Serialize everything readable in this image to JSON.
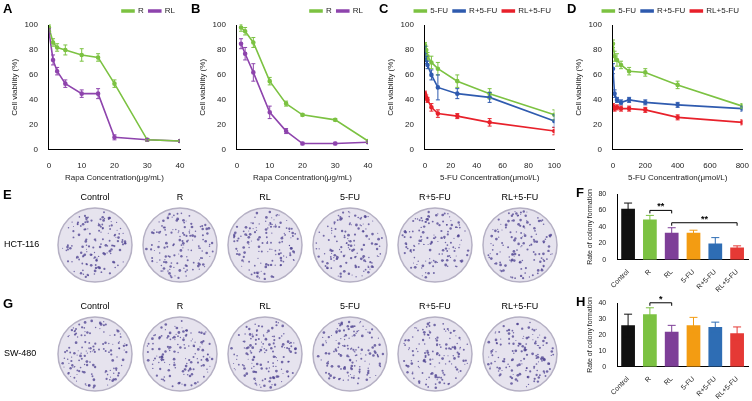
{
  "chart_data": [
    {
      "panel": "A",
      "type": "line",
      "x_label": "Rapa Concentration(μg/mL)",
      "y_label": "Cell viability (%)",
      "x": [
        0,
        1.25,
        2.5,
        5,
        10,
        15,
        20,
        30,
        40
      ],
      "series": [
        {
          "name": "R",
          "color": "#7cc242",
          "values": [
            98,
            86,
            82,
            80,
            76,
            74,
            53,
            8,
            7
          ],
          "errors": [
            2,
            3,
            3,
            4,
            5,
            3,
            3,
            1,
            1
          ]
        },
        {
          "name": "RL",
          "color": "#8e44ad",
          "values": [
            95,
            72,
            63,
            53,
            45,
            45,
            10,
            8,
            7
          ],
          "errors": [
            2,
            4,
            3,
            3,
            3,
            4,
            2,
            1,
            1
          ]
        }
      ],
      "xlim": [
        0,
        40
      ],
      "xticks": [
        0,
        10,
        20,
        30,
        40
      ],
      "ylim": [
        0,
        100
      ],
      "yticks": [
        0,
        20,
        40,
        60,
        80,
        100
      ],
      "grid": false,
      "legend": "top-right"
    },
    {
      "panel": "B",
      "type": "line",
      "x_label": "Rapa Concentration(μg/mL)",
      "y_label": "Cell viability (%)",
      "x": [
        1.25,
        2.5,
        5,
        10,
        15,
        20,
        30,
        40
      ],
      "series": [
        {
          "name": "R",
          "color": "#7cc242",
          "values": [
            98,
            95,
            86,
            55,
            37,
            28,
            24,
            7
          ],
          "errors": [
            3,
            3,
            4,
            3,
            2,
            1,
            1,
            1
          ]
        },
        {
          "name": "RL",
          "color": "#8e44ad",
          "values": [
            85,
            77,
            62,
            30,
            15,
            5,
            5,
            6
          ],
          "errors": [
            4,
            5,
            7,
            5,
            2,
            1,
            1,
            1
          ]
        }
      ],
      "xlim": [
        0,
        40
      ],
      "xticks": [
        0,
        10,
        20,
        30,
        40
      ],
      "ylim": [
        0,
        100
      ],
      "yticks": [
        0,
        20,
        40,
        60,
        80,
        100
      ],
      "grid": false,
      "legend": "top-right"
    },
    {
      "panel": "C",
      "type": "line",
      "x_label": "5-FU Concentration(μmol/L)",
      "y_label": "Cell viability (%)",
      "x": [
        0,
        1,
        2,
        5,
        10,
        25,
        50,
        100
      ],
      "series": [
        {
          "name": "5-FU",
          "color": "#7cc242",
          "values": [
            84,
            80,
            75,
            70,
            65,
            55,
            45,
            28
          ],
          "errors": [
            2,
            3,
            3,
            5,
            5,
            5,
            4,
            4
          ]
        },
        {
          "name": "R+5-FU",
          "color": "#2f5baf",
          "values": [
            80,
            72,
            68,
            60,
            50,
            45,
            42,
            23
          ],
          "errors": [
            3,
            3,
            3,
            4,
            10,
            4,
            4,
            5
          ]
        },
        {
          "name": "RL+5-FU",
          "color": "#e8212b",
          "values": [
            45,
            42,
            40,
            34,
            29,
            27,
            22,
            15
          ],
          "errors": [
            2,
            2,
            2,
            3,
            3,
            2,
            3,
            3
          ]
        }
      ],
      "xlim": [
        0,
        100
      ],
      "xticks": [
        0,
        20,
        40,
        60,
        80,
        100
      ],
      "ylim": [
        0,
        100
      ],
      "yticks": [
        0,
        20,
        40,
        60,
        80,
        100
      ],
      "grid": false,
      "legend": "top-right"
    },
    {
      "panel": "D",
      "type": "line",
      "x_label": "5-FU Concentration(μmol/L)",
      "y_label": "Cell viability (%)",
      "x": [
        0,
        10,
        25,
        50,
        100,
        200,
        400,
        800
      ],
      "series": [
        {
          "name": "5-FU",
          "color": "#7cc242",
          "values": [
            85,
            75,
            72,
            68,
            63,
            62,
            52,
            35
          ],
          "errors": [
            3,
            4,
            5,
            3,
            3,
            3,
            3,
            2
          ]
        },
        {
          "name": "R+5-FU",
          "color": "#2f5baf",
          "values": [
            65,
            45,
            40,
            38,
            40,
            38,
            36,
            33
          ],
          "errors": [
            4,
            3,
            2,
            2,
            2,
            2,
            2,
            2
          ]
        },
        {
          "name": "RL+5-FU",
          "color": "#e8212b",
          "values": [
            35,
            33,
            34,
            33,
            33,
            32,
            26,
            22
          ],
          "errors": [
            2,
            2,
            2,
            2,
            2,
            2,
            2,
            2
          ]
        }
      ],
      "xlim": [
        0,
        800
      ],
      "xticks": [
        0,
        200,
        400,
        600,
        800
      ],
      "ylim": [
        0,
        100
      ],
      "yticks": [
        0,
        20,
        40,
        60,
        80,
        100
      ],
      "grid": false,
      "legend": "top-right"
    },
    {
      "panel": "F",
      "type": "bar",
      "y_label": "Rate of colony formation",
      "categories": [
        "Control",
        "R",
        "RL",
        "5-FU",
        "R+5-FU",
        "RL+5-FU"
      ],
      "values": [
        62,
        49,
        33,
        33,
        20,
        15
      ],
      "errors": [
        7,
        5,
        6,
        3,
        7,
        2
      ],
      "colors": [
        "#111111",
        "#7cc242",
        "#7e3f98",
        "#f39c12",
        "#2e6db4",
        "#e53935"
      ],
      "ylim": [
        0,
        80
      ],
      "yticks": [
        0,
        20,
        40,
        60,
        80
      ],
      "grid": false,
      "significance": [
        {
          "from": "R",
          "to": "RL",
          "text": "**"
        },
        {
          "from": "RL",
          "to": "RL+5-FU",
          "text": "**"
        }
      ]
    },
    {
      "panel": "H",
      "type": "bar",
      "y_label": "Rate of colony formation",
      "categories": [
        "Control",
        "R",
        "RL",
        "5-FU",
        "R+5-FU",
        "RL+5-FU"
      ],
      "values": [
        26,
        33,
        22,
        26,
        25,
        21
      ],
      "errors": [
        7,
        4,
        4,
        5,
        3,
        4
      ],
      "colors": [
        "#111111",
        "#7cc242",
        "#7e3f98",
        "#f39c12",
        "#2e6db4",
        "#e53935"
      ],
      "ylim": [
        0,
        40
      ],
      "yticks": [
        0,
        10,
        20,
        30,
        40
      ],
      "grid": false,
      "significance": [
        {
          "from": "R",
          "to": "RL",
          "text": "*"
        }
      ]
    }
  ],
  "colony_assays": [
    {
      "panel": "E",
      "cell_line": "HCT-116",
      "wells": [
        "Control",
        "R",
        "RL",
        "5-FU",
        "R+5-FU",
        "RL+5-FU"
      ]
    },
    {
      "panel": "G",
      "cell_line": "SW-480",
      "wells": [
        "Control",
        "R",
        "RL",
        "5-FU",
        "R+5-FU",
        "RL+5-FU"
      ]
    }
  ]
}
